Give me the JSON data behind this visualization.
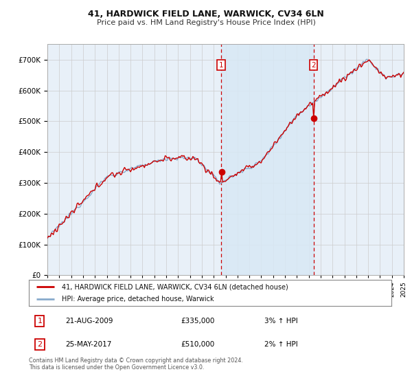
{
  "title": "41, HARDWICK FIELD LANE, WARWICK, CV34 6LN",
  "subtitle": "Price paid vs. HM Land Registry's House Price Index (HPI)",
  "legend_line1": "41, HARDWICK FIELD LANE, WARWICK, CV34 6LN (detached house)",
  "legend_line2": "HPI: Average price, detached house, Warwick",
  "transaction1_date": "21-AUG-2009",
  "transaction1_price": "£335,000",
  "transaction1_hpi": "3% ↑ HPI",
  "transaction2_date": "25-MAY-2017",
  "transaction2_price": "£510,000",
  "transaction2_hpi": "2% ↑ HPI",
  "footnote": "Contains HM Land Registry data © Crown copyright and database right 2024.\nThis data is licensed under the Open Government Licence v3.0.",
  "background_color": "#ffffff",
  "plot_bg_color": "#e8f0f8",
  "grid_color": "#cccccc",
  "line_red": "#cc0000",
  "line_blue": "#88aacc",
  "highlight_color": "#d8e8f5",
  "ylim_min": 0,
  "ylim_max": 750000,
  "yticks": [
    0,
    100000,
    200000,
    300000,
    400000,
    500000,
    600000,
    700000
  ],
  "xstart": 1995,
  "xend": 2025,
  "t1_year": 2009.641,
  "t2_year": 2017.401,
  "t1_price": 335000,
  "t2_price": 510000
}
